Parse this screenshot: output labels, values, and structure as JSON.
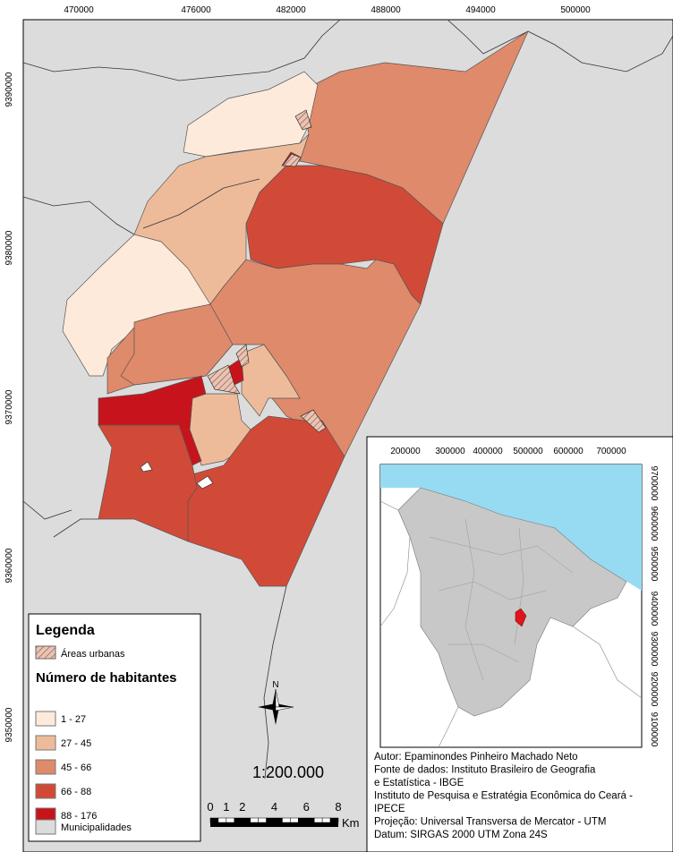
{
  "map": {
    "x_ticks": [
      470000,
      476000,
      482000,
      488000,
      494000,
      500000
    ],
    "y_ticks": [
      9390000,
      9380000,
      9370000,
      9360000,
      9350000
    ],
    "legend": {
      "title": "Legenda",
      "urban_label": "Áreas urbanas",
      "population_title": "Número de habitantes",
      "classes": [
        {
          "label": "1 - 27",
          "color": "#fdeadb"
        },
        {
          "label": "27 - 45",
          "color": "#eebb9a"
        },
        {
          "label": "45 - 66",
          "color": "#df8a6b"
        },
        {
          "label": "66 - 88",
          "color": "#d14a37"
        },
        {
          "label": "88 - 176",
          "color": "#c7141c"
        }
      ],
      "municipalities": {
        "label": "Municipalidades",
        "color": "#dcdcdc"
      }
    },
    "north": "N",
    "scale": "1:200.000",
    "scale_ticks": [
      0,
      1,
      2,
      4,
      6,
      8
    ],
    "scale_unit": "Km"
  },
  "inset": {
    "x_ticks": [
      200000,
      300000,
      400000,
      500000,
      600000,
      700000
    ],
    "y_ticks": [
      9700000,
      9600000,
      9500000,
      9400000,
      9300000,
      9200000,
      9100000
    ],
    "credits": [
      "Autor: Epaminondes Pinheiro Machado Neto",
      "Fonte de dados: Instituto Brasileiro de Geografia",
      "e Estatística - IBGE",
      "Instituto de Pesquisa e Estratégia Econômica do Ceará -",
      "IPECE",
      "Projeção: Universal Transversa de Mercator - UTM",
      "Datum: SIRGAS 2000 UTM Zona 24S"
    ]
  }
}
